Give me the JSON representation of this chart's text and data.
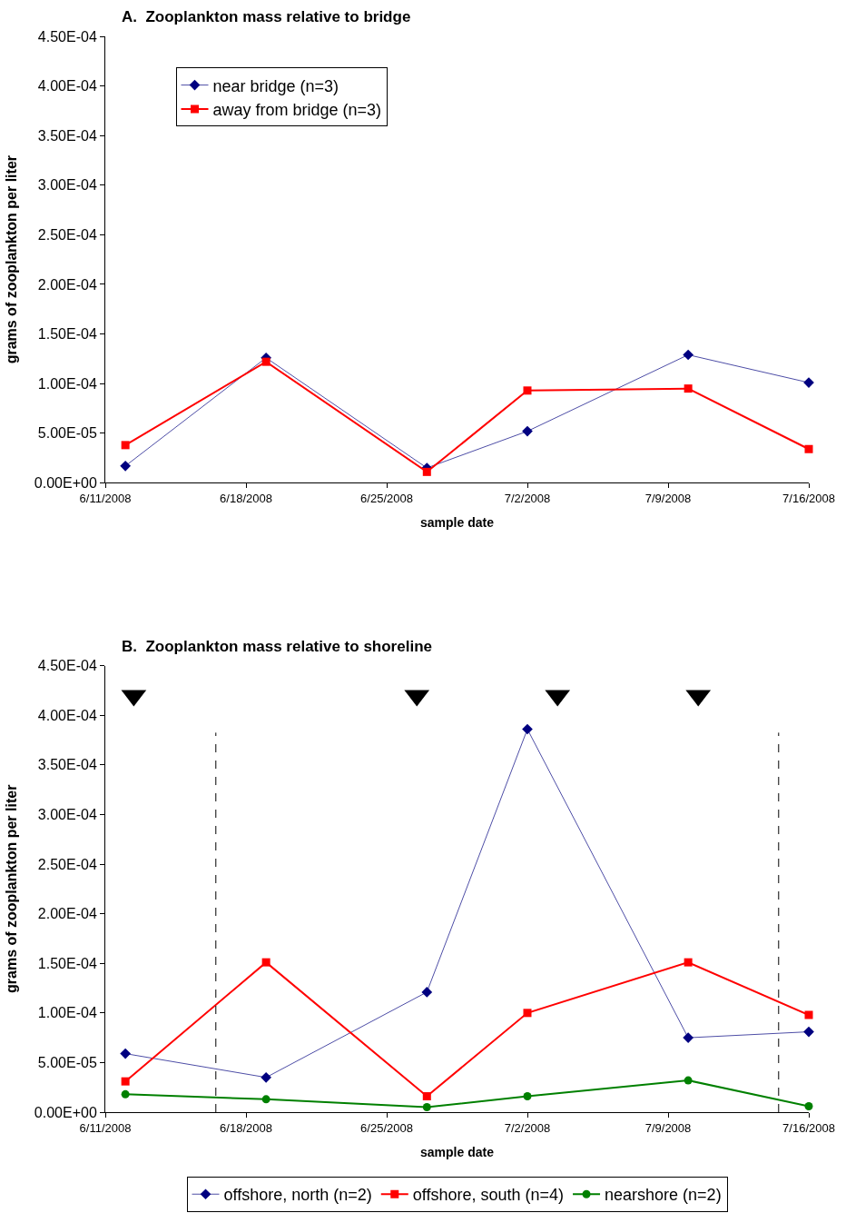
{
  "chart_data": [
    {
      "type": "line",
      "title": "A.  Zooplankton mass relative to bridge",
      "xlabel": "sample date",
      "ylabel": "grams of zooplankton per liter",
      "x": [
        "2008-06-12",
        "2008-06-19",
        "2008-06-27",
        "2008-07-02",
        "2008-07-10",
        "2008-07-16"
      ],
      "series": [
        {
          "name": "near bridge (n=3)",
          "color": "#000080",
          "marker": "diamond",
          "values": [
            1.7e-05,
            0.000126,
            1.5e-05,
            5.2e-05,
            0.000129,
            0.000101
          ]
        },
        {
          "name": "away from bridge (n=3)",
          "color": "#ff0000",
          "marker": "square",
          "values": [
            3.8e-05,
            0.000122,
            1.1e-05,
            9.3e-05,
            9.5e-05,
            3.4e-05
          ]
        }
      ],
      "xlim": [
        "2008-06-11",
        "2008-07-16"
      ],
      "xticks": [
        {
          "value": "2008-06-11",
          "label": "6/11/2008"
        },
        {
          "value": "2008-06-18",
          "label": "6/18/2008"
        },
        {
          "value": "2008-06-25",
          "label": "6/25/2008"
        },
        {
          "value": "2008-07-02",
          "label": "7/2/2008"
        },
        {
          "value": "2008-07-09",
          "label": "7/9/2008"
        },
        {
          "value": "2008-07-16",
          "label": "7/16/2008"
        }
      ],
      "ylim": [
        0,
        0.00045
      ],
      "yticks": [
        {
          "value": 0,
          "label": "0.00E+00"
        },
        {
          "value": 5e-05,
          "label": "5.00E-05"
        },
        {
          "value": 0.0001,
          "label": "1.00E-04"
        },
        {
          "value": 0.00015,
          "label": "1.50E-04"
        },
        {
          "value": 0.0002,
          "label": "2.00E-04"
        },
        {
          "value": 0.00025,
          "label": "2.50E-04"
        },
        {
          "value": 0.0003,
          "label": "3.00E-04"
        },
        {
          "value": 0.00035,
          "label": "3.50E-04"
        },
        {
          "value": 0.0004,
          "label": "4.00E-04"
        },
        {
          "value": 0.00045,
          "label": "4.50E-04"
        }
      ],
      "grid": false,
      "legend": "top left"
    },
    {
      "type": "line",
      "title": "B.  Zooplankton mass relative to shoreline",
      "xlabel": "sample date",
      "ylabel": "grams of zooplankton per liter",
      "x": [
        "2008-06-12",
        "2008-06-19",
        "2008-06-27",
        "2008-07-02",
        "2008-07-10",
        "2008-07-16"
      ],
      "series": [
        {
          "name": "offshore, north (n=2)",
          "color": "#000080",
          "marker": "diamond",
          "values": [
            5.9e-05,
            3.5e-05,
            0.000121,
            0.000386,
            7.5e-05,
            8.1e-05
          ]
        },
        {
          "name": "offshore, south (n=4)",
          "color": "#ff0000",
          "marker": "square",
          "values": [
            3.1e-05,
            0.000151,
            1.6e-05,
            0.0001,
            0.000151,
            9.8e-05
          ]
        },
        {
          "name": "nearshore (n=2)",
          "color": "#008000",
          "marker": "circle",
          "values": [
            1.8e-05,
            1.3e-05,
            5e-06,
            1.6e-05,
            3.2e-05,
            6e-06
          ]
        },
        {
          "type": "scatter",
          "color": "#000000",
          "marker": "triangle",
          "x": [
            "2008-06-12T10:00",
            "2008-06-26T12:00",
            "2008-07-03T12:00",
            "2008-07-10T12:00"
          ],
          "values": [
            0.00042,
            0.00042,
            0.00042,
            0.00042
          ]
        }
      ],
      "ref_lines": [
        {
          "axis": "x",
          "value": "2008-06-16T12:00",
          "color": "#000000",
          "line_style": "dashed"
        },
        {
          "axis": "x",
          "value": "2008-07-14T12:00",
          "color": "#000000",
          "line_style": "dashed"
        }
      ],
      "xlim": [
        "2008-06-11",
        "2008-07-16"
      ],
      "xticks": [
        {
          "value": "2008-06-11",
          "label": "6/11/2008"
        },
        {
          "value": "2008-06-18",
          "label": "6/18/2008"
        },
        {
          "value": "2008-06-25",
          "label": "6/25/2008"
        },
        {
          "value": "2008-07-02",
          "label": "7/2/2008"
        },
        {
          "value": "2008-07-09",
          "label": "7/9/2008"
        },
        {
          "value": "2008-07-16",
          "label": "7/16/2008"
        }
      ],
      "ylim": [
        0,
        0.00045
      ],
      "yticks": [
        {
          "value": 0,
          "label": "0.00E+00"
        },
        {
          "value": 5e-05,
          "label": "5.00E-05"
        },
        {
          "value": 0.0001,
          "label": "1.00E-04"
        },
        {
          "value": 0.00015,
          "label": "1.50E-04"
        },
        {
          "value": 0.0002,
          "label": "2.00E-04"
        },
        {
          "value": 0.00025,
          "label": "2.50E-04"
        },
        {
          "value": 0.0003,
          "label": "3.00E-04"
        },
        {
          "value": 0.00035,
          "label": "3.50E-04"
        },
        {
          "value": 0.0004,
          "label": "4.00E-04"
        },
        {
          "value": 0.00045,
          "label": "4.50E-04"
        }
      ],
      "grid": false,
      "legend": "bottom"
    }
  ]
}
